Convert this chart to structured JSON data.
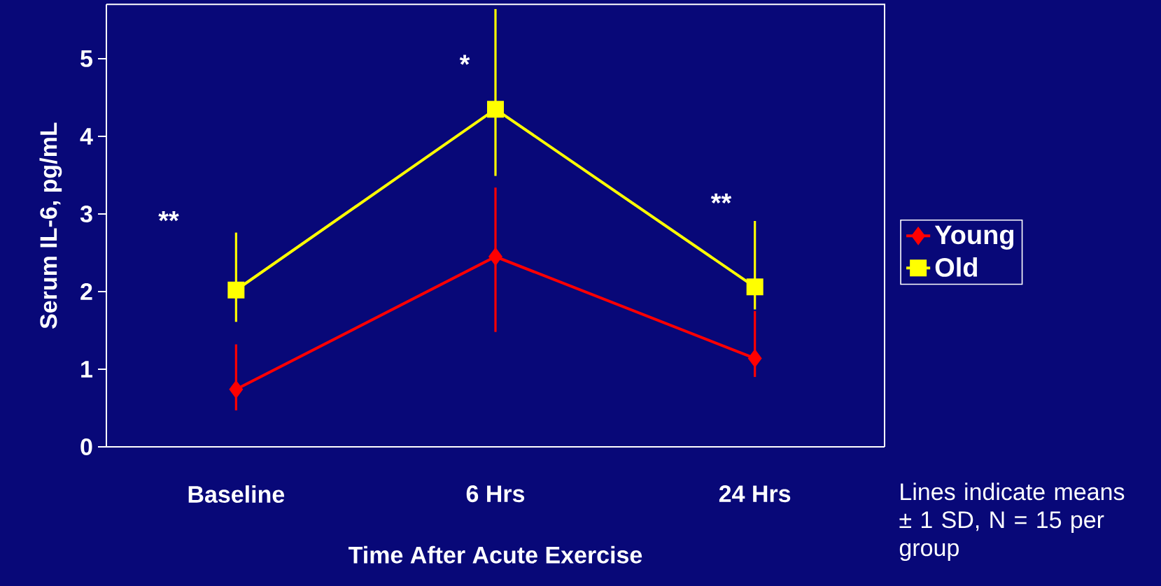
{
  "chart_data": {
    "type": "line",
    "xlabel": "Time After Acute Exercise",
    "ylabel": "Serum IL-6, pg/mL",
    "categories": [
      "Baseline",
      "6 Hrs",
      "24 Hrs"
    ],
    "series": [
      {
        "name": "Young",
        "color": "#ff0000",
        "marker": "diamond",
        "values": [
          0.74,
          2.45,
          1.14
        ],
        "errors": [
          [
            0.47,
            1.32
          ],
          [
            1.48,
            3.34
          ],
          [
            0.9,
            1.75
          ]
        ]
      },
      {
        "name": "Old",
        "color": "#ffff00",
        "marker": "square",
        "values": [
          2.02,
          4.35,
          2.06
        ],
        "errors": [
          [
            1.61,
            2.76
          ],
          [
            3.49,
            5.64
          ],
          [
            1.77,
            2.91
          ]
        ]
      }
    ],
    "ylim": [
      0,
      5.7
    ],
    "yticks": [
      0,
      1,
      2,
      3,
      4,
      5
    ],
    "legend": "right",
    "line_style": "solid",
    "annotations": [
      "**",
      {
        "text": "*",
        "x": "6 Hrs",
        "y": 4.75
      },
      "**",
      "Lines indicate means ± 1 SD, N = 15 per group"
    ]
  }
}
